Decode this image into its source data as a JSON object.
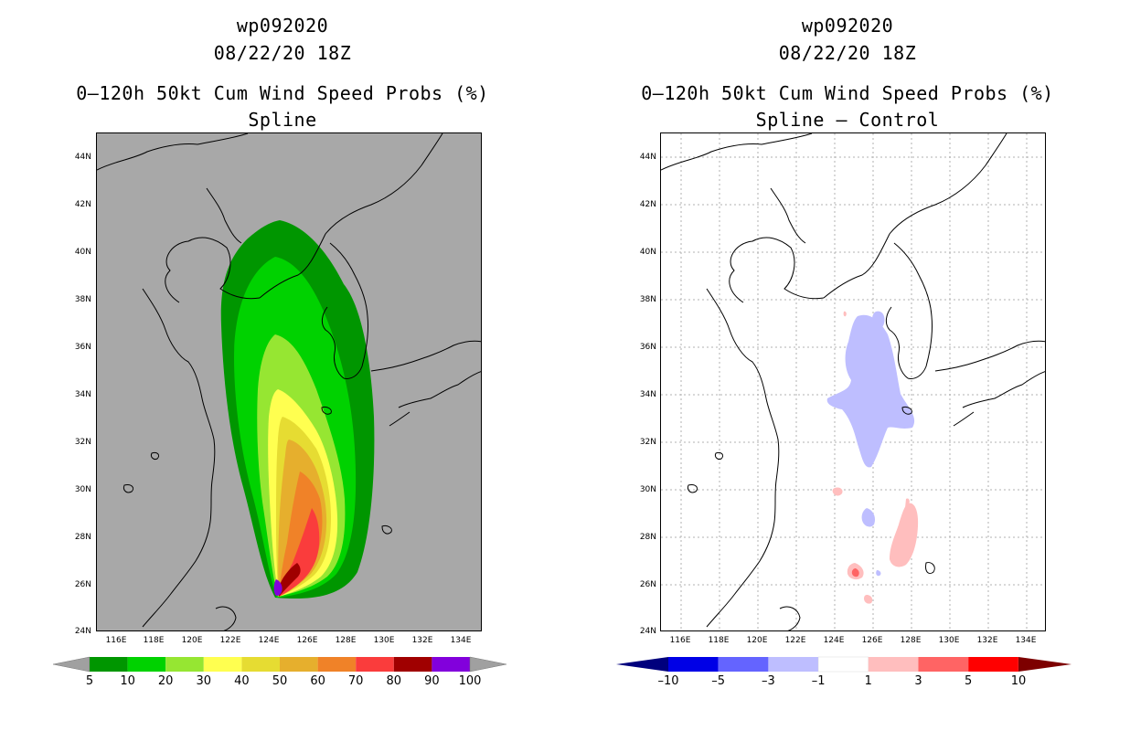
{
  "left_panel": {
    "title_storm": "wp092020",
    "title_time": "08/22/20 18Z",
    "title_product": "0–120h 50kt Cum Wind Speed Probs (%)",
    "title_variant": "Spline",
    "lat_labels": [
      "44N",
      "42N",
      "40N",
      "38N",
      "36N",
      "34N",
      "32N",
      "30N",
      "28N",
      "26N",
      "24N"
    ],
    "lon_labels": [
      "116E",
      "118E",
      "120E",
      "122E",
      "124E",
      "126E",
      "128E",
      "130E",
      "132E",
      "134E"
    ],
    "colorbar": {
      "colors": [
        "#009600",
        "#00d200",
        "#96e632",
        "#ffff50",
        "#e6dc32",
        "#e6af2d",
        "#f08228",
        "#fa3c3c",
        "#a00000",
        "#8200dc"
      ],
      "end_color": "#a0a0a0",
      "labels": [
        "5",
        "10",
        "20",
        "30",
        "40",
        "50",
        "60",
        "70",
        "80",
        "90",
        "100"
      ]
    }
  },
  "right_panel": {
    "title_storm": "wp092020",
    "title_time": "08/22/20 18Z",
    "title_product": "0–120h 50kt Cum Wind Speed Probs (%)",
    "title_variant": "Spline – Control",
    "lat_labels": [
      "44N",
      "42N",
      "40N",
      "38N",
      "36N",
      "34N",
      "32N",
      "30N",
      "28N",
      "26N",
      "24N"
    ],
    "lon_labels": [
      "116E",
      "118E",
      "120E",
      "122E",
      "124E",
      "126E",
      "128E",
      "130E",
      "132E",
      "134E"
    ],
    "colorbar": {
      "colors": [
        "#0000e6",
        "#6464ff",
        "#bebeff",
        "#ffffff",
        "#ffbebe",
        "#ff6464",
        "#ff0000"
      ],
      "low_end_color": "#00007d",
      "high_end_color": "#7d0000",
      "labels": [
        "–10",
        "–5",
        "–3",
        "–1",
        "1",
        "3",
        "5",
        "10"
      ]
    }
  }
}
